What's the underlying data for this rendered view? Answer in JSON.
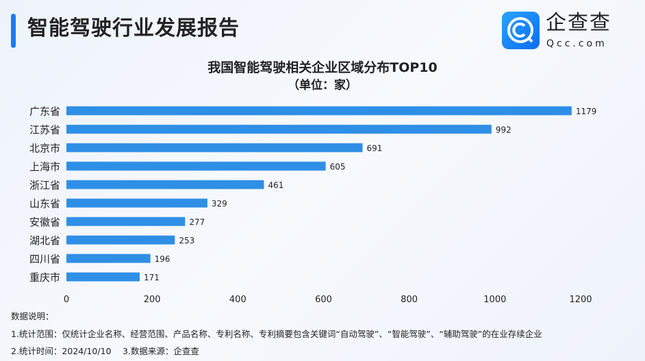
{
  "header": {
    "title": "智能驾驶行业发展报告"
  },
  "logo": {
    "cn": "企查查",
    "en": "Qcc.com"
  },
  "colors": {
    "bar": "#2e8fe6",
    "accent": "#1a7cf5"
  },
  "chart_data": {
    "type": "bar",
    "orientation": "horizontal",
    "title": "我国智能驾驶相关企业区域分布TOP10",
    "subtitle": "（单位：家）",
    "categories": [
      "广东省",
      "江苏省",
      "北京市",
      "上海市",
      "浙江省",
      "山东省",
      "安徽省",
      "湖北省",
      "四川省",
      "重庆市"
    ],
    "values": [
      1179,
      992,
      691,
      605,
      461,
      329,
      277,
      253,
      196,
      171
    ],
    "xlim": [
      0,
      1200
    ],
    "xticks": [
      0,
      200,
      400,
      600,
      800,
      1000,
      1200
    ],
    "grid": false
  },
  "notes": {
    "heading": "数据说明：",
    "line1": "1.统计范围：仅统计企业名称、经营范围、产品名称、专利名称、专利摘要包含关键词“自动驾驶”、“智能驾驶”、“辅助驾驶”的在业存续企业",
    "line2": "2.统计时间：2024/10/10　 3.数据来源：企查查"
  }
}
